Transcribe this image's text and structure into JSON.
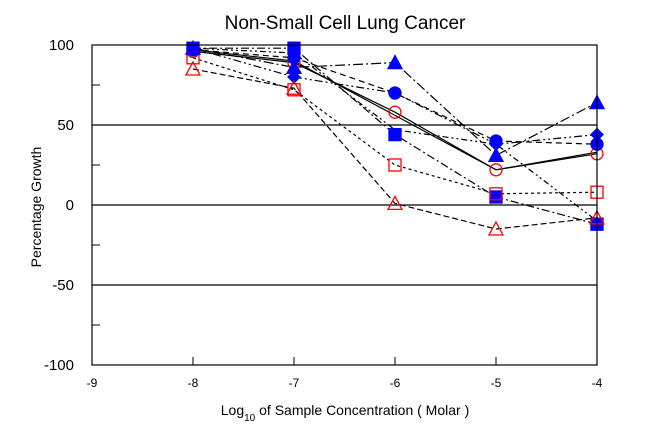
{
  "chart_data": {
    "type": "line",
    "title": "Non-Small Cell Lung Cancer",
    "xlabel_main": "Log",
    "xlabel_sub": "10",
    "xlabel_rest": " of Sample Concentration ( Molar )",
    "ylabel": "Percentage Growth",
    "xlim": [
      -9,
      -4
    ],
    "ylim": [
      -100,
      100
    ],
    "xticks": [
      -9,
      -8,
      -7,
      -6,
      -5,
      -4
    ],
    "yticks": [
      -100,
      -50,
      0,
      50,
      100
    ],
    "grid_y": [
      50,
      0,
      -50
    ],
    "x": [
      -8,
      -7,
      -6,
      -5,
      -4
    ],
    "series": [
      {
        "values": [
          96,
          89,
          58,
          22,
          32
        ],
        "color": "#ff0000",
        "marker": "circle-open",
        "dash": ""
      },
      {
        "values": [
          97,
          92,
          70,
          40,
          38
        ],
        "color": "#0000ff",
        "marker": "circle-filled",
        "dash": "6,4"
      },
      {
        "values": [
          98,
          98,
          44,
          5,
          -12
        ],
        "color": "#0000ff",
        "marker": "square-filled",
        "dash": "8,3,2,3"
      },
      {
        "values": [
          92,
          72,
          25,
          7,
          8
        ],
        "color": "#ff0000",
        "marker": "square-open",
        "dash": "3,3"
      },
      {
        "values": [
          98,
          80,
          70,
          38,
          44
        ],
        "color": "#0000ff",
        "marker": "diamond-filled",
        "dash": "8,3,2,3,2,3"
      },
      {
        "values": [
          98,
          86,
          89,
          31,
          64
        ],
        "color": "#0000ff",
        "marker": "triangle-filled",
        "dash": "10,3,2,3"
      },
      {
        "values": [
          85,
          73,
          1,
          -15,
          -8
        ],
        "color": "#ff0000",
        "marker": "triangle-open",
        "dash": "6,3"
      },
      {
        "values": [
          98,
          95,
          47,
          38,
          -10
        ],
        "color": "#000000",
        "marker": "none",
        "dash": "2,3,2,3,6,3"
      },
      {
        "values": [
          97,
          90,
          56,
          22,
          33
        ],
        "color": "#000000",
        "marker": "none",
        "dash": ""
      }
    ]
  }
}
